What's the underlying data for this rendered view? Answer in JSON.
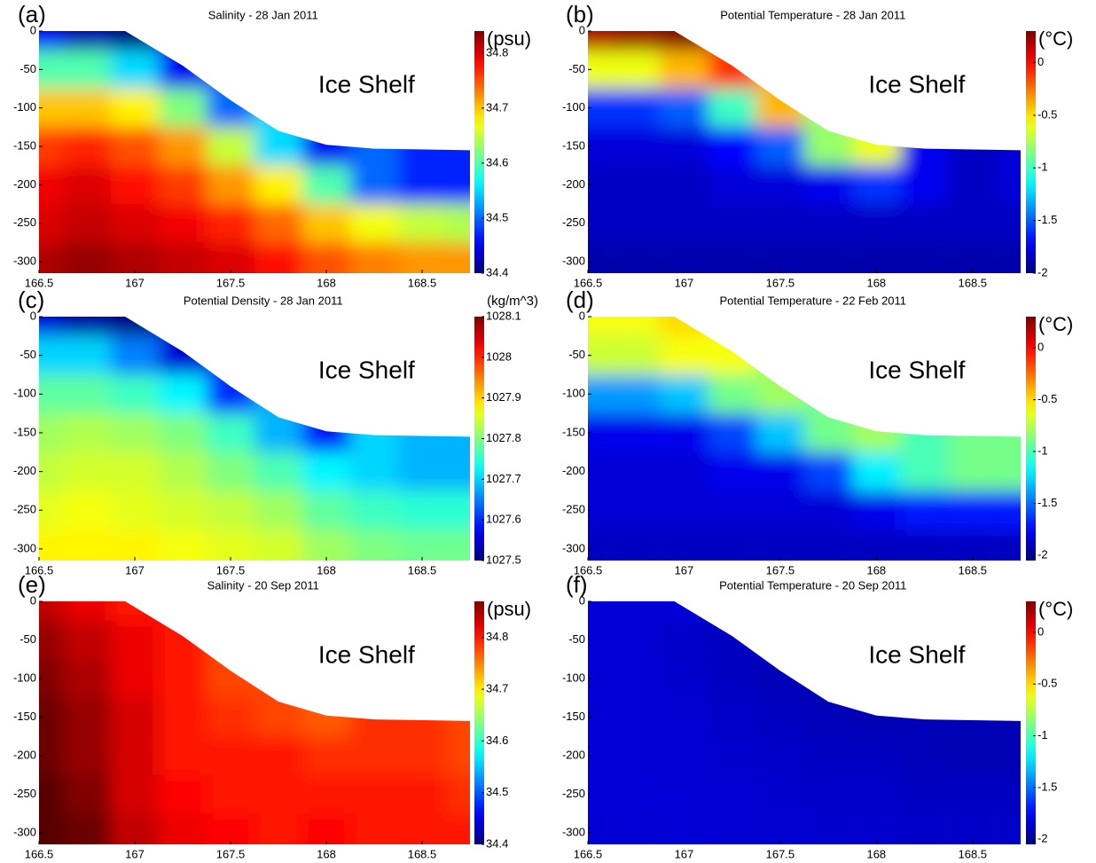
{
  "chart_data": [
    {
      "type": "contour",
      "panel_label": "(a)",
      "title": "Salinity - 28 Jan 2011",
      "annotation": "Ice Shelf",
      "colorbar_label": "(psu)",
      "colormap": "jet",
      "x": [
        166.5,
        166.75,
        167,
        167.25,
        167.5,
        167.75,
        168,
        168.25,
        168.5,
        168.75
      ],
      "depth": [
        0,
        -50,
        -100,
        -150,
        -200,
        -250,
        -300
      ],
      "z": [
        [
          34.45,
          34.42,
          34.4,
          null,
          null,
          null,
          null,
          null,
          null,
          null
        ],
        [
          34.6,
          34.6,
          34.55,
          34.45,
          null,
          null,
          null,
          null,
          null,
          null
        ],
        [
          34.7,
          34.7,
          34.68,
          34.62,
          34.5,
          null,
          null,
          null,
          null,
          null
        ],
        [
          34.76,
          34.77,
          34.75,
          34.72,
          34.65,
          34.55,
          34.45,
          null,
          null,
          null
        ],
        [
          34.79,
          34.8,
          34.78,
          34.76,
          34.72,
          34.68,
          34.6,
          34.5,
          34.47,
          34.47
        ],
        [
          34.8,
          34.81,
          34.8,
          34.79,
          34.77,
          34.74,
          34.7,
          34.67,
          34.65,
          34.64
        ],
        [
          34.82,
          34.83,
          34.82,
          34.81,
          34.8,
          34.78,
          34.75,
          34.73,
          34.72,
          34.72
        ]
      ],
      "ice_base": {
        "x": [
          166.5,
          166.95,
          167.25,
          167.5,
          167.75,
          168,
          168.25,
          168.75
        ],
        "y": [
          0,
          0,
          -45,
          -90,
          -130,
          -148,
          -153,
          -155
        ]
      },
      "xlim": [
        166.5,
        168.75
      ],
      "ylim": [
        -315,
        0
      ],
      "xticks": [
        166.5,
        167,
        167.5,
        168,
        168.5
      ],
      "yticks": [
        0,
        -50,
        -100,
        -150,
        -200,
        -250,
        -300
      ],
      "clim": [
        34.4,
        34.84
      ],
      "cticks": [
        34.4,
        34.5,
        34.6,
        34.7,
        34.8
      ]
    },
    {
      "type": "contour",
      "panel_label": "(b)",
      "title": "Potential Temperature - 28 Jan 2011",
      "annotation": "Ice Shelf",
      "colorbar_label": "(°C)",
      "colormap": "jet",
      "x": [
        166.5,
        166.75,
        167,
        167.25,
        167.5,
        167.75,
        168,
        168.25,
        168.5,
        168.75
      ],
      "depth": [
        0,
        -50,
        -100,
        -150,
        -200,
        -250,
        -300
      ],
      "z": [
        [
          0.2,
          0.25,
          0.3,
          null,
          null,
          null,
          null,
          null,
          null,
          null
        ],
        [
          -0.6,
          -0.6,
          -0.4,
          -0.1,
          null,
          null,
          null,
          null,
          null,
          null
        ],
        [
          -1.6,
          -1.6,
          -1.5,
          -1.0,
          -0.4,
          null,
          null,
          null,
          null,
          null
        ],
        [
          -1.8,
          -1.8,
          -1.8,
          -1.7,
          -1.5,
          -0.8,
          -0.6,
          null,
          null,
          null
        ],
        [
          -1.85,
          -1.85,
          -1.85,
          -1.8,
          -1.8,
          -1.75,
          -1.6,
          -1.75,
          -1.85,
          -1.8
        ],
        [
          -1.85,
          -1.85,
          -1.85,
          -1.85,
          -1.85,
          -1.85,
          -1.85,
          -1.85,
          -1.85,
          -1.85
        ],
        [
          -1.9,
          -1.9,
          -1.9,
          -1.9,
          -1.9,
          -1.9,
          -1.9,
          -1.9,
          -1.9,
          -1.9
        ]
      ],
      "ice_base": {
        "x": [
          166.5,
          166.95,
          167.25,
          167.5,
          167.75,
          168,
          168.25,
          168.75
        ],
        "y": [
          0,
          0,
          -45,
          -90,
          -130,
          -148,
          -153,
          -155
        ]
      },
      "xlim": [
        166.5,
        168.75
      ],
      "ylim": [
        -315,
        0
      ],
      "xticks": [
        166.5,
        167,
        167.5,
        168,
        168.5
      ],
      "yticks": [
        0,
        -50,
        -100,
        -150,
        -200,
        -250,
        -300
      ],
      "clim": [
        -2,
        0.3
      ],
      "cticks": [
        -2,
        -1.5,
        -1,
        -0.5,
        0
      ]
    },
    {
      "type": "contour",
      "panel_label": "(c)",
      "title": "Potential Density - 28 Jan 2011",
      "annotation": "Ice Shelf",
      "colorbar_label": "(kg/m^3)",
      "colormap": "jet",
      "x": [
        166.5,
        166.75,
        167,
        167.25,
        167.5,
        167.75,
        168,
        168.25,
        168.5,
        168.75
      ],
      "depth": [
        0,
        -50,
        -100,
        -150,
        -200,
        -250,
        -300
      ],
      "z": [
        [
          1027.55,
          1027.52,
          1027.5,
          null,
          null,
          null,
          null,
          null,
          null,
          null
        ],
        [
          1027.7,
          1027.7,
          1027.65,
          1027.55,
          null,
          null,
          null,
          null,
          null,
          null
        ],
        [
          1027.78,
          1027.78,
          1027.76,
          1027.72,
          1027.6,
          null,
          null,
          null,
          null,
          null
        ],
        [
          1027.82,
          1027.83,
          1027.82,
          1027.8,
          1027.76,
          1027.68,
          1027.58,
          null,
          null,
          null
        ],
        [
          1027.84,
          1027.85,
          1027.85,
          1027.83,
          1027.8,
          1027.77,
          1027.72,
          1027.7,
          1027.68,
          1027.68
        ],
        [
          1027.86,
          1027.87,
          1027.86,
          1027.85,
          1027.84,
          1027.82,
          1027.78,
          1027.76,
          1027.75,
          1027.75
        ],
        [
          1027.88,
          1027.88,
          1027.88,
          1027.87,
          1027.86,
          1027.85,
          1027.82,
          1027.8,
          1027.79,
          1027.79
        ]
      ],
      "ice_base": {
        "x": [
          166.5,
          166.95,
          167.25,
          167.5,
          167.75,
          168,
          168.25,
          168.75
        ],
        "y": [
          0,
          0,
          -45,
          -90,
          -130,
          -148,
          -153,
          -155
        ]
      },
      "xlim": [
        166.5,
        168.75
      ],
      "ylim": [
        -315,
        0
      ],
      "xticks": [
        166.5,
        167,
        167.5,
        168,
        168.5
      ],
      "yticks": [
        0,
        -50,
        -100,
        -150,
        -200,
        -250,
        -300
      ],
      "clim": [
        1027.5,
        1028.1
      ],
      "cticks": [
        1027.5,
        1027.6,
        1027.7,
        1027.8,
        1027.9,
        1028,
        1028.1
      ]
    },
    {
      "type": "contour",
      "panel_label": "(d)",
      "title": "Potential Temperature - 22 Feb 2011",
      "annotation": "Ice Shelf",
      "colorbar_label": "(°C)",
      "colormap": "jet",
      "x": [
        166.5,
        166.75,
        167,
        167.25,
        167.5,
        167.75,
        168,
        168.25,
        168.5,
        168.75
      ],
      "depth": [
        0,
        -50,
        -100,
        -150,
        -200,
        -250,
        -300
      ],
      "z": [
        [
          -0.6,
          -0.6,
          -0.5,
          null,
          null,
          null,
          null,
          null,
          null,
          null
        ],
        [
          -0.7,
          -0.7,
          -0.6,
          -0.6,
          null,
          null,
          null,
          null,
          null,
          null
        ],
        [
          -1.4,
          -1.4,
          -1.3,
          -0.9,
          -0.8,
          null,
          null,
          null,
          null,
          null
        ],
        [
          -1.8,
          -1.8,
          -1.8,
          -1.6,
          -1.3,
          -0.9,
          -0.8,
          null,
          null,
          null
        ],
        [
          -1.85,
          -1.85,
          -1.85,
          -1.8,
          -1.8,
          -1.6,
          -1.2,
          -1.0,
          -0.9,
          -0.9
        ],
        [
          -1.85,
          -1.85,
          -1.85,
          -1.85,
          -1.85,
          -1.85,
          -1.8,
          -1.7,
          -1.7,
          -1.7
        ],
        [
          -1.9,
          -1.9,
          -1.9,
          -1.9,
          -1.9,
          -1.9,
          -1.9,
          -1.9,
          -1.9,
          -1.9
        ]
      ],
      "ice_base": {
        "x": [
          166.5,
          166.95,
          167.25,
          167.5,
          167.75,
          168,
          168.25,
          168.75
        ],
        "y": [
          0,
          0,
          -45,
          -90,
          -130,
          -148,
          -153,
          -155
        ]
      },
      "xlim": [
        166.5,
        168.75
      ],
      "ylim": [
        -315,
        0
      ],
      "xticks": [
        166.5,
        167,
        167.5,
        168,
        168.5
      ],
      "yticks": [
        0,
        -50,
        -100,
        -150,
        -200,
        -250,
        -300
      ],
      "clim": [
        -2.05,
        0.3
      ],
      "cticks": [
        -2,
        -1.5,
        -1,
        -0.5,
        0
      ]
    },
    {
      "type": "contour",
      "panel_label": "(e)",
      "title": "Salinity - 20 Sep 2011",
      "annotation": "Ice Shelf",
      "colorbar_label": "(psu)",
      "colormap": "jet",
      "x": [
        166.5,
        166.75,
        167,
        167.25,
        167.5,
        167.75,
        168,
        168.25,
        168.5,
        168.75
      ],
      "depth": [
        0,
        -50,
        -100,
        -150,
        -200,
        -250,
        -300
      ],
      "z": [
        [
          34.84,
          34.82,
          34.8,
          null,
          null,
          null,
          null,
          null,
          null,
          null
        ],
        [
          34.86,
          34.84,
          34.82,
          34.8,
          null,
          null,
          null,
          null,
          null,
          null
        ],
        [
          34.87,
          34.85,
          34.82,
          34.8,
          34.78,
          null,
          null,
          null,
          null,
          null
        ],
        [
          34.88,
          34.86,
          34.83,
          34.8,
          34.79,
          34.78,
          34.77,
          null,
          null,
          null
        ],
        [
          34.88,
          34.86,
          34.83,
          34.8,
          34.8,
          34.8,
          34.79,
          34.79,
          34.79,
          34.78
        ],
        [
          34.89,
          34.87,
          34.83,
          34.81,
          34.8,
          34.8,
          34.8,
          34.8,
          34.8,
          34.79
        ],
        [
          34.89,
          34.88,
          34.84,
          34.82,
          34.81,
          34.8,
          34.81,
          34.8,
          34.8,
          34.8
        ]
      ],
      "ice_base": {
        "x": [
          166.5,
          166.95,
          167.25,
          167.5,
          167.75,
          168,
          168.25,
          168.75
        ],
        "y": [
          0,
          0,
          -45,
          -90,
          -130,
          -148,
          -153,
          -155
        ]
      },
      "xlim": [
        166.5,
        168.75
      ],
      "ylim": [
        -315,
        0
      ],
      "xticks": [
        166.5,
        167,
        167.5,
        168,
        168.5
      ],
      "yticks": [
        0,
        -50,
        -100,
        -150,
        -200,
        -250,
        -300
      ],
      "clim": [
        34.4,
        34.87
      ],
      "cticks": [
        34.4,
        34.5,
        34.6,
        34.7,
        34.8
      ]
    },
    {
      "type": "contour",
      "panel_label": "(f)",
      "title": "Potential Temperature - 20 Sep 2011",
      "annotation": "Ice Shelf",
      "colorbar_label": "(°C)",
      "colormap": "jet",
      "x": [
        166.5,
        166.75,
        167,
        167.25,
        167.5,
        167.75,
        168,
        168.25,
        168.5,
        168.75
      ],
      "depth": [
        0,
        -50,
        -100,
        -150,
        -200,
        -250,
        -300
      ],
      "z": [
        [
          -1.85,
          -1.85,
          -1.85,
          null,
          null,
          null,
          null,
          null,
          null,
          null
        ],
        [
          -1.85,
          -1.85,
          -1.88,
          -1.9,
          null,
          null,
          null,
          null,
          null,
          null
        ],
        [
          -1.85,
          -1.85,
          -1.87,
          -1.9,
          -1.92,
          null,
          null,
          null,
          null,
          null
        ],
        [
          -1.85,
          -1.85,
          -1.86,
          -1.88,
          -1.9,
          -1.92,
          -1.93,
          null,
          null,
          null
        ],
        [
          -1.85,
          -1.85,
          -1.86,
          -1.87,
          -1.88,
          -1.9,
          -1.9,
          -1.92,
          -1.93,
          -1.93
        ],
        [
          -1.85,
          -1.85,
          -1.85,
          -1.86,
          -1.87,
          -1.88,
          -1.88,
          -1.9,
          -1.9,
          -1.9
        ],
        [
          -1.85,
          -1.85,
          -1.85,
          -1.86,
          -1.86,
          -1.87,
          -1.87,
          -1.88,
          -1.88,
          -1.88
        ]
      ],
      "ice_base": {
        "x": [
          166.5,
          166.95,
          167.25,
          167.5,
          167.75,
          168,
          168.25,
          168.75
        ],
        "y": [
          0,
          0,
          -45,
          -90,
          -130,
          -148,
          -153,
          -155
        ]
      },
      "xlim": [
        166.5,
        168.75
      ],
      "ylim": [
        -315,
        0
      ],
      "xticks": [
        166.5,
        167,
        167.5,
        168,
        168.5
      ],
      "yticks": [
        0,
        -50,
        -100,
        -150,
        -200,
        -250,
        -300
      ],
      "clim": [
        -2.05,
        0.3
      ],
      "cticks": [
        -2,
        -1.5,
        -1,
        -0.5,
        0
      ]
    }
  ]
}
